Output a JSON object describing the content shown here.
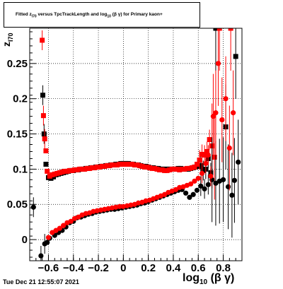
{
  "chart_data": {
    "type": "scatter",
    "title_parts": {
      "pre": "Fitted  z",
      "sub1": "I70",
      "mid": "  versus TpcTrackLength and log",
      "sub2": "10",
      "post": " (β γ) for Primary kaon+"
    },
    "ylabel_parts": {
      "main": "z",
      "sub": "I70"
    },
    "xlabel_parts": {
      "main": "log",
      "sub": "10",
      "post": "(β γ)"
    },
    "timestamp": "Tue Dec 21 12:55:07 2021",
    "xlim": [
      -0.75,
      0.95
    ],
    "ylim": [
      -0.03,
      0.3
    ],
    "x_ticks": [
      {
        "v": -0.6,
        "label": "−0.6"
      },
      {
        "v": -0.4,
        "label": "−0.4"
      },
      {
        "v": -0.2,
        "label": "−0.2"
      },
      {
        "v": 0.0,
        "label": "0"
      },
      {
        "v": 0.2,
        "label": "0.2"
      },
      {
        "v": 0.4,
        "label": "0.4"
      },
      {
        "v": 0.6,
        "label": "0.6"
      },
      {
        "v": 0.8,
        "label": "0.8"
      }
    ],
    "y_ticks": [
      {
        "v": 0.0,
        "label": "0"
      },
      {
        "v": 0.05,
        "label": "0.05"
      },
      {
        "v": 0.1,
        "label": "0.1"
      },
      {
        "v": 0.15,
        "label": "0.15"
      },
      {
        "v": 0.2,
        "label": "0.2"
      },
      {
        "v": 0.25,
        "label": "0.25"
      }
    ],
    "grid": true,
    "colors": {
      "black": "#000000",
      "red": "#ff0000"
    },
    "series": [
      {
        "marker": "square",
        "color": "#000000",
        "points": [
          [
            -0.645,
            0.205
          ],
          [
            -0.635,
            0.15
          ],
          [
            -0.62,
            0.107
          ],
          [
            -0.6,
            0.088
          ],
          [
            -0.58,
            0.087
          ],
          [
            -0.56,
            0.089
          ],
          [
            -0.54,
            0.092
          ],
          [
            -0.52,
            0.093
          ],
          [
            -0.5,
            0.094
          ],
          [
            -0.48,
            0.095
          ],
          [
            -0.46,
            0.096
          ],
          [
            -0.44,
            0.097
          ],
          [
            -0.42,
            0.098
          ],
          [
            -0.4,
            0.098
          ],
          [
            -0.38,
            0.099
          ],
          [
            -0.36,
            0.099
          ],
          [
            -0.34,
            0.1
          ],
          [
            -0.32,
            0.1
          ],
          [
            -0.3,
            0.101
          ],
          [
            -0.28,
            0.101
          ],
          [
            -0.26,
            0.102
          ],
          [
            -0.24,
            0.102
          ],
          [
            -0.22,
            0.103
          ],
          [
            -0.2,
            0.103
          ],
          [
            -0.18,
            0.104
          ],
          [
            -0.16,
            0.104
          ],
          [
            -0.14,
            0.105
          ],
          [
            -0.12,
            0.105
          ],
          [
            -0.1,
            0.106
          ],
          [
            -0.08,
            0.106
          ],
          [
            -0.06,
            0.107
          ],
          [
            -0.04,
            0.107
          ],
          [
            -0.02,
            0.108
          ],
          [
            0.0,
            0.108
          ],
          [
            0.02,
            0.108
          ],
          [
            0.04,
            0.108
          ],
          [
            0.06,
            0.107
          ],
          [
            0.08,
            0.107
          ],
          [
            0.1,
            0.106
          ],
          [
            0.12,
            0.106
          ],
          [
            0.14,
            0.105
          ],
          [
            0.16,
            0.104
          ],
          [
            0.18,
            0.104
          ],
          [
            0.2,
            0.103
          ],
          [
            0.22,
            0.102
          ],
          [
            0.24,
            0.102
          ],
          [
            0.26,
            0.101
          ],
          [
            0.28,
            0.101
          ],
          [
            0.3,
            0.1
          ],
          [
            0.32,
            0.1
          ],
          [
            0.34,
            0.1
          ],
          [
            0.36,
            0.1
          ],
          [
            0.38,
            0.1
          ],
          [
            0.4,
            0.1
          ],
          [
            0.42,
            0.1
          ],
          [
            0.44,
            0.101
          ],
          [
            0.46,
            0.101
          ],
          [
            0.48,
            0.1
          ],
          [
            0.5,
            0.1
          ],
          [
            0.52,
            0.1
          ],
          [
            0.54,
            0.101
          ],
          [
            0.56,
            0.102
          ],
          [
            0.58,
            0.103
          ],
          [
            0.6,
            0.104
          ],
          [
            0.62,
            0.105
          ],
          [
            0.64,
            0.098
          ],
          [
            0.66,
            0.1
          ],
          [
            0.68,
            0.115
          ],
          [
            0.7,
            0.095
          ],
          [
            0.74,
            0.3
          ],
          [
            0.82,
            0.16
          ],
          [
            0.9,
            0.26
          ]
        ]
      },
      {
        "marker": "square",
        "color": "#ff0000",
        "points": [
          [
            -0.65,
            0.283
          ],
          [
            -0.64,
            0.176
          ],
          [
            -0.63,
            0.143
          ],
          [
            -0.62,
            0.126
          ],
          [
            -0.61,
            0.097
          ],
          [
            -0.59,
            0.09
          ],
          [
            -0.57,
            0.092
          ],
          [
            -0.55,
            0.093
          ],
          [
            -0.53,
            0.094
          ],
          [
            -0.51,
            0.095
          ],
          [
            -0.49,
            0.096
          ],
          [
            -0.47,
            0.097
          ],
          [
            -0.45,
            0.097
          ],
          [
            -0.43,
            0.098
          ],
          [
            -0.41,
            0.098
          ],
          [
            -0.39,
            0.099
          ],
          [
            -0.37,
            0.099
          ],
          [
            -0.35,
            0.1
          ],
          [
            -0.33,
            0.1
          ],
          [
            -0.31,
            0.1
          ],
          [
            -0.29,
            0.101
          ],
          [
            -0.27,
            0.101
          ],
          [
            -0.25,
            0.102
          ],
          [
            -0.23,
            0.102
          ],
          [
            -0.21,
            0.103
          ],
          [
            -0.19,
            0.103
          ],
          [
            -0.17,
            0.104
          ],
          [
            -0.15,
            0.104
          ],
          [
            -0.13,
            0.105
          ],
          [
            -0.11,
            0.105
          ],
          [
            -0.09,
            0.106
          ],
          [
            -0.07,
            0.106
          ],
          [
            -0.05,
            0.106
          ],
          [
            -0.03,
            0.107
          ],
          [
            -0.01,
            0.107
          ],
          [
            0.01,
            0.107
          ],
          [
            0.03,
            0.107
          ],
          [
            0.05,
            0.107
          ],
          [
            0.07,
            0.107
          ],
          [
            0.09,
            0.106
          ],
          [
            0.11,
            0.106
          ],
          [
            0.13,
            0.105
          ],
          [
            0.15,
            0.104
          ],
          [
            0.17,
            0.103
          ],
          [
            0.19,
            0.103
          ],
          [
            0.21,
            0.102
          ],
          [
            0.23,
            0.101
          ],
          [
            0.25,
            0.101
          ],
          [
            0.27,
            0.1
          ],
          [
            0.29,
            0.099
          ],
          [
            0.31,
            0.099
          ],
          [
            0.33,
            0.098
          ],
          [
            0.35,
            0.098
          ],
          [
            0.37,
            0.099
          ],
          [
            0.39,
            0.1
          ],
          [
            0.41,
            0.1
          ],
          [
            0.43,
            0.1
          ],
          [
            0.45,
            0.099
          ],
          [
            0.47,
            0.1
          ],
          [
            0.49,
            0.1
          ],
          [
            0.51,
            0.101
          ],
          [
            0.53,
            0.101
          ],
          [
            0.55,
            0.102
          ],
          [
            0.57,
            0.103
          ],
          [
            0.59,
            0.107
          ],
          [
            0.61,
            0.113
          ],
          [
            0.63,
            0.121
          ],
          [
            0.65,
            0.12
          ],
          [
            0.67,
            0.125
          ],
          [
            0.69,
            0.142
          ],
          [
            0.71,
            0.133
          ],
          [
            0.73,
            0.117
          ],
          [
            0.77,
            0.3
          ],
          [
            0.86,
            0.3
          ]
        ]
      },
      {
        "marker": "circle",
        "color": "#000000",
        "points": [
          [
            -0.72,
            0.046
          ],
          [
            -0.66,
            -0.023
          ],
          [
            -0.63,
            -0.006
          ],
          [
            -0.61,
            -0.004
          ],
          [
            -0.59,
            0.002
          ],
          [
            -0.55,
            0.006
          ],
          [
            -0.52,
            0.01
          ],
          [
            -0.49,
            0.013
          ],
          [
            -0.46,
            0.018
          ],
          [
            -0.43,
            0.024
          ],
          [
            -0.4,
            0.026
          ],
          [
            -0.37,
            0.031
          ],
          [
            -0.34,
            0.032
          ],
          [
            -0.31,
            0.034
          ],
          [
            -0.28,
            0.036
          ],
          [
            -0.25,
            0.037
          ],
          [
            -0.22,
            0.039
          ],
          [
            -0.19,
            0.04
          ],
          [
            -0.16,
            0.041
          ],
          [
            -0.13,
            0.042
          ],
          [
            -0.1,
            0.043
          ],
          [
            -0.07,
            0.043
          ],
          [
            -0.04,
            0.044
          ],
          [
            -0.01,
            0.045
          ],
          [
            0.02,
            0.046
          ],
          [
            0.05,
            0.047
          ],
          [
            0.08,
            0.048
          ],
          [
            0.11,
            0.049
          ],
          [
            0.14,
            0.051
          ],
          [
            0.17,
            0.052
          ],
          [
            0.2,
            0.054
          ],
          [
            0.23,
            0.056
          ],
          [
            0.26,
            0.058
          ],
          [
            0.29,
            0.06
          ],
          [
            0.32,
            0.062
          ],
          [
            0.35,
            0.064
          ],
          [
            0.38,
            0.066
          ],
          [
            0.41,
            0.068
          ],
          [
            0.44,
            0.07
          ],
          [
            0.47,
            0.071
          ],
          [
            0.5,
            0.066
          ],
          [
            0.53,
            0.06
          ],
          [
            0.56,
            0.064
          ],
          [
            0.59,
            0.07
          ],
          [
            0.62,
            0.076
          ],
          [
            0.65,
            0.072
          ],
          [
            0.68,
            0.078
          ],
          [
            0.71,
            0.085
          ],
          [
            0.74,
            0.08
          ],
          [
            0.77,
            0.083
          ],
          [
            0.8,
            0.085
          ],
          [
            0.84,
            0.075
          ],
          [
            0.87,
            0.063
          ],
          [
            0.89,
            0.084
          ],
          [
            0.92,
            0.11
          ]
        ]
      },
      {
        "marker": "circle",
        "color": "#ff0000",
        "points": [
          [
            -0.6,
            0.003
          ],
          [
            -0.57,
            0.01
          ],
          [
            -0.54,
            0.013
          ],
          [
            -0.51,
            0.016
          ],
          [
            -0.48,
            0.02
          ],
          [
            -0.45,
            0.024
          ],
          [
            -0.42,
            0.026
          ],
          [
            -0.39,
            0.03
          ],
          [
            -0.36,
            0.032
          ],
          [
            -0.33,
            0.035
          ],
          [
            -0.3,
            0.037
          ],
          [
            -0.27,
            0.038
          ],
          [
            -0.24,
            0.04
          ],
          [
            -0.21,
            0.041
          ],
          [
            -0.18,
            0.042
          ],
          [
            -0.15,
            0.043
          ],
          [
            -0.12,
            0.044
          ],
          [
            -0.09,
            0.045
          ],
          [
            -0.06,
            0.046
          ],
          [
            -0.03,
            0.047
          ],
          [
            0.0,
            0.047
          ],
          [
            0.03,
            0.048
          ],
          [
            0.06,
            0.049
          ],
          [
            0.09,
            0.05
          ],
          [
            0.12,
            0.052
          ],
          [
            0.15,
            0.053
          ],
          [
            0.18,
            0.055
          ],
          [
            0.21,
            0.056
          ],
          [
            0.24,
            0.058
          ],
          [
            0.27,
            0.06
          ],
          [
            0.3,
            0.062
          ],
          [
            0.33,
            0.064
          ],
          [
            0.36,
            0.067
          ],
          [
            0.39,
            0.069
          ],
          [
            0.42,
            0.071
          ],
          [
            0.45,
            0.074
          ],
          [
            0.48,
            0.075
          ],
          [
            0.51,
            0.077
          ],
          [
            0.54,
            0.079
          ],
          [
            0.57,
            0.083
          ],
          [
            0.6,
            0.087
          ],
          [
            0.63,
            0.094
          ],
          [
            0.66,
            0.108
          ],
          [
            0.68,
            0.12
          ],
          [
            0.7,
            0.09
          ],
          [
            0.72,
            0.175
          ],
          [
            0.74,
            0.18
          ],
          [
            0.76,
            0.25
          ],
          [
            0.79,
            0.17
          ],
          [
            0.82,
            0.2
          ],
          [
            0.85,
            0.13
          ],
          [
            0.88,
            0.18
          ]
        ]
      }
    ]
  }
}
